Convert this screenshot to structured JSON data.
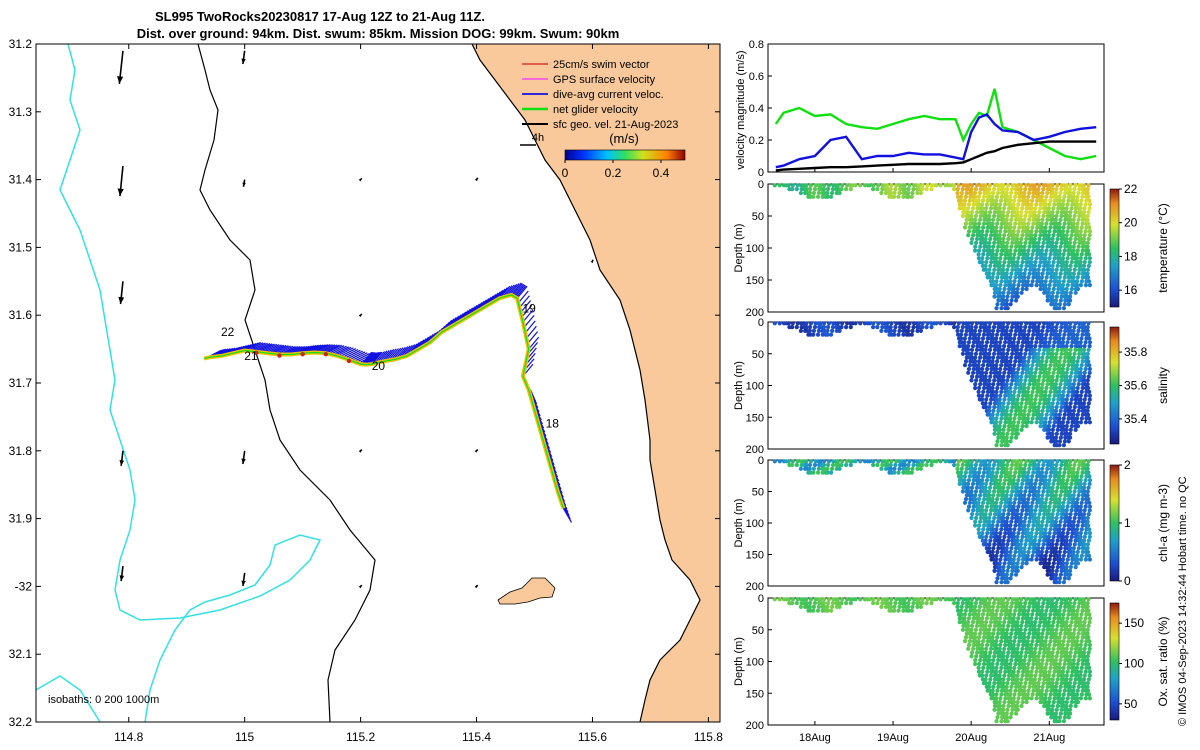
{
  "colors": {
    "land": "#f9c99b",
    "isobath_0": "#000000",
    "isobath_200": "#000000",
    "isobath_1000": "#35e0e0",
    "swim_vector": "#d02020",
    "gps_velocity": "#ff30ff",
    "dive_avg_current": "#1010e0",
    "net_glider_velocity": "#10e010",
    "sfc_geo_vel": "#000000",
    "track": "#f0c000"
  },
  "chart_data": [
    {
      "id": "map",
      "type": "scatter",
      "title": "SL995 TwoRocks20230817 17-Aug 12Z to 21-Aug 11Z.",
      "subtitle": "Dist. over ground: 94km. Dist. swum: 85km. Mission DOG: 99km. Swum: 90km",
      "xlim": [
        114.64,
        115.82
      ],
      "ylim": [
        -32.2,
        -31.2
      ],
      "xticks": [
        114.8,
        115,
        115.2,
        115.4,
        115.6,
        115.8
      ],
      "xtick_labels": [
        "114.8",
        "115",
        "115.2",
        "115.4",
        "115.6",
        "115.8"
      ],
      "yticks": [
        -31.2,
        -31.3,
        -31.4,
        -31.5,
        -31.6,
        -31.7,
        -31.8,
        -31.9,
        -32,
        -32.1,
        -32.2
      ],
      "ytick_labels": [
        "31.2",
        "31.3",
        "31.4",
        "31.5",
        "31.6",
        "31.7",
        "31.8",
        "31.9",
        "-32",
        "32.1",
        "32.2"
      ],
      "legend": [
        {
          "label": "25cm/s swim vector",
          "color_key": "swim_vector"
        },
        {
          "label": "GPS surface velocity",
          "color_key": "gps_velocity"
        },
        {
          "label": "dive-avg current veloc.",
          "color_key": "dive_avg_current"
        },
        {
          "label": "net glider velocity",
          "color_key": "net_glider_velocity"
        },
        {
          "label": "sfc geo. vel. 21-Aug-2023",
          "color_key": "sfc_geo_vel"
        }
      ],
      "legend_position": "top-right",
      "arrow_scale_label": "4h",
      "colorbar": {
        "label": "(m/s)",
        "ticks": [
          "0",
          "0.2",
          "0.4"
        ],
        "range": [
          0,
          0.5
        ]
      },
      "isobath_label": "isobaths: 0   200  1000m",
      "track_lon": [
        115.55,
        115.54,
        115.53,
        115.52,
        115.51,
        115.5,
        115.49,
        115.48,
        115.49,
        115.48,
        115.47,
        115.46,
        115.44,
        115.42,
        115.4,
        115.38,
        115.36,
        115.34,
        115.32,
        115.3,
        115.28,
        115.26,
        115.24,
        115.22,
        115.21,
        115.2,
        115.18,
        115.16,
        115.14,
        115.12,
        115.1,
        115.08,
        115.06,
        115.04,
        115.02,
        115.0,
        114.98,
        114.96,
        114.94,
        114.93
      ],
      "track_lat": [
        -31.885,
        -31.86,
        -31.83,
        -31.8,
        -31.77,
        -31.74,
        -31.71,
        -31.69,
        -31.65,
        -31.61,
        -31.575,
        -31.57,
        -31.575,
        -31.585,
        -31.595,
        -31.605,
        -31.615,
        -31.625,
        -31.64,
        -31.65,
        -31.66,
        -31.665,
        -31.668,
        -31.672,
        -31.673,
        -31.672,
        -31.666,
        -31.66,
        -31.656,
        -31.655,
        -31.656,
        -31.658,
        -31.658,
        -31.656,
        -31.654,
        -31.652,
        -31.656,
        -31.66,
        -31.662,
        -31.664
      ],
      "day_labels": [
        {
          "text": "18",
          "lon": 115.51,
          "lat": -31.76
        },
        {
          "text": "19",
          "lon": 115.47,
          "lat": -31.59
        },
        {
          "text": "20",
          "lon": 115.21,
          "lat": -31.675
        },
        {
          "text": "21",
          "lon": 114.99,
          "lat": -31.66
        },
        {
          "text": "22",
          "lon": 114.95,
          "lat": -31.625
        }
      ],
      "geo_arrows": [
        {
          "lon": 114.79,
          "lat": -31.21,
          "u": -0.06,
          "v": -0.55
        },
        {
          "lon": 114.79,
          "lat": -31.38,
          "u": -0.05,
          "v": -0.5
        },
        {
          "lon": 114.79,
          "lat": -31.55,
          "u": -0.04,
          "v": -0.38
        },
        {
          "lon": 114.79,
          "lat": -31.8,
          "u": -0.03,
          "v": -0.25
        },
        {
          "lon": 114.79,
          "lat": -31.97,
          "u": -0.03,
          "v": -0.25
        },
        {
          "lon": 115.0,
          "lat": -31.21,
          "u": -0.03,
          "v": -0.22
        },
        {
          "lon": 115.0,
          "lat": -31.4,
          "u": -0.02,
          "v": -0.12
        },
        {
          "lon": 115.0,
          "lat": -31.8,
          "u": -0.03,
          "v": -0.22
        },
        {
          "lon": 115.0,
          "lat": -31.98,
          "u": -0.03,
          "v": -0.22
        },
        {
          "lon": 115.2,
          "lat": -31.4,
          "u": 0.02,
          "v": 0.02
        },
        {
          "lon": 115.2,
          "lat": -31.6,
          "u": 0.02,
          "v": 0.02
        },
        {
          "lon": 115.2,
          "lat": -31.8,
          "u": 0.02,
          "v": 0.02
        },
        {
          "lon": 115.2,
          "lat": -32.0,
          "u": 0.02,
          "v": 0.02
        },
        {
          "lon": 115.4,
          "lat": -31.4,
          "u": 0.02,
          "v": 0.03
        },
        {
          "lon": 115.4,
          "lat": -31.8,
          "u": 0.02,
          "v": 0.02
        },
        {
          "lon": 115.4,
          "lat": -32.0,
          "u": 0.02,
          "v": 0.02
        },
        {
          "lon": 115.6,
          "lat": -31.52,
          "u": 0.01,
          "v": 0.02
        }
      ]
    },
    {
      "id": "velocity",
      "type": "line",
      "ylabel": "velocity magnitude (m/s)",
      "ylim": [
        0,
        0.8
      ],
      "yticks": [
        0,
        0.2,
        0.4,
        0.6,
        0.8
      ],
      "ytick_labels": [
        "0",
        "0.2",
        "0.4",
        "0.6",
        "0.8"
      ],
      "x": [
        17.5,
        17.6,
        17.8,
        18.0,
        18.2,
        18.4,
        18.6,
        18.8,
        19.0,
        19.2,
        19.4,
        19.6,
        19.8,
        19.9,
        20.0,
        20.1,
        20.2,
        20.3,
        20.4,
        20.6,
        20.8,
        21.0,
        21.2,
        21.4,
        21.6
      ],
      "series": [
        {
          "name": "net glider velocity",
          "color_key": "net_glider_velocity",
          "values": [
            0.3,
            0.37,
            0.4,
            0.35,
            0.36,
            0.3,
            0.28,
            0.27,
            0.3,
            0.33,
            0.35,
            0.33,
            0.33,
            0.2,
            0.3,
            0.37,
            0.35,
            0.52,
            0.28,
            0.25,
            0.2,
            0.15,
            0.1,
            0.08,
            0.1
          ]
        },
        {
          "name": "dive-avg current veloc.",
          "color_key": "dive_avg_current",
          "values": [
            0.03,
            0.04,
            0.08,
            0.1,
            0.2,
            0.22,
            0.08,
            0.1,
            0.1,
            0.12,
            0.11,
            0.11,
            0.09,
            0.08,
            0.25,
            0.34,
            0.36,
            0.3,
            0.26,
            0.25,
            0.2,
            0.22,
            0.25,
            0.27,
            0.28
          ]
        },
        {
          "name": "sfc geo. vel.",
          "color_key": "sfc_geo_vel",
          "values": [
            0.01,
            0.015,
            0.02,
            0.025,
            0.03,
            0.03,
            0.035,
            0.04,
            0.045,
            0.05,
            0.05,
            0.05,
            0.055,
            0.06,
            0.08,
            0.1,
            0.12,
            0.13,
            0.15,
            0.17,
            0.18,
            0.19,
            0.19,
            0.19,
            0.19
          ]
        }
      ]
    },
    {
      "id": "temperature",
      "type": "heatmap",
      "ylabel": "Depth (m)",
      "cbar_label": "temperature (°C)",
      "cbar_range": [
        15,
        22
      ],
      "cbar_ticks": [
        "16",
        "18",
        "20",
        "22"
      ],
      "cbar_tick_values": [
        16,
        18,
        20,
        22
      ],
      "yticks": [
        "0",
        "50",
        "100",
        "150",
        "200"
      ]
    },
    {
      "id": "salinity",
      "type": "heatmap",
      "ylabel": "Depth (m)",
      "cbar_label": "salinity",
      "cbar_range": [
        35.25,
        35.95
      ],
      "cbar_ticks": [
        "35.4",
        "35.6",
        "35.8"
      ],
      "cbar_tick_values": [
        35.4,
        35.6,
        35.8
      ],
      "yticks": [
        "0",
        "50",
        "100",
        "150",
        "200"
      ]
    },
    {
      "id": "chla",
      "type": "heatmap",
      "ylabel": "Depth (m)",
      "cbar_label": "chl-a (mg m-3)",
      "cbar_range": [
        0,
        2
      ],
      "cbar_ticks": [
        "0",
        "1",
        "2"
      ],
      "cbar_tick_values": [
        0,
        1,
        2
      ],
      "yticks": [
        "0",
        "50",
        "100",
        "150",
        "200"
      ]
    },
    {
      "id": "oxygen",
      "type": "heatmap",
      "ylabel": "Depth (m)",
      "cbar_label": "Ox. sat. ratio (%)",
      "cbar_range": [
        30,
        175
      ],
      "cbar_ticks": [
        "50",
        "100",
        "150"
      ],
      "cbar_tick_values": [
        50,
        100,
        150
      ],
      "yticks": [
        "0",
        "50",
        "100",
        "150",
        "200"
      ],
      "xticks": [
        "18Aug",
        "19Aug",
        "20Aug",
        "21Aug"
      ]
    }
  ],
  "footer_note": "© IMOS 04-Sep-2023 14:32:44 Hobart time. no QC"
}
